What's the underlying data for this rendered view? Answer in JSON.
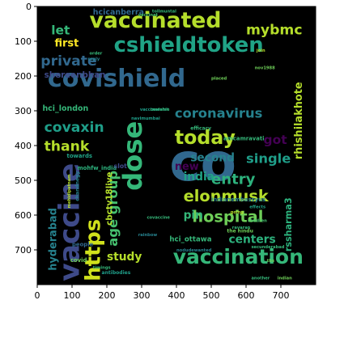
{
  "chart_data": {
    "type": "wordcloud",
    "title": "",
    "xlabel": "",
    "ylabel": "",
    "xlim": [
      0,
      800
    ],
    "ylim": [
      800,
      0
    ],
    "x_ticks": [
      "0",
      "100",
      "200",
      "300",
      "400",
      "500",
      "600",
      "700"
    ],
    "y_ticks": [
      "0",
      "100",
      "200",
      "300",
      "400",
      "500",
      "600",
      "700"
    ],
    "grid": false,
    "background_color": "#000000",
    "words": [
      {
        "text": "covishield",
        "x": 30,
        "y": 230,
        "size": 70,
        "color": "#31688e",
        "vertical": false
      },
      {
        "text": "co",
        "x": 380,
        "y": 500,
        "size": 150,
        "color": "#31688e",
        "vertical": false
      },
      {
        "text": "vaccinated",
        "x": 150,
        "y": 60,
        "size": 62,
        "color": "#b5de2b",
        "vertical": false
      },
      {
        "text": "cshieldtoken",
        "x": 220,
        "y": 130,
        "size": 60,
        "color": "#20a386",
        "vertical": false
      },
      {
        "text": "vaccination",
        "x": 390,
        "y": 740,
        "size": 58,
        "color": "#35b779",
        "vertical": false
      },
      {
        "text": "https",
        "x": 180,
        "y": 790,
        "size": 60,
        "color": "#d0e11c",
        "vertical": true
      },
      {
        "text": "vaccine",
        "x": 120,
        "y": 790,
        "size": 80,
        "color": "#3e4a89",
        "vertical": true
      },
      {
        "text": "today",
        "x": 395,
        "y": 395,
        "size": 55,
        "color": "#b5de2b",
        "vertical": false
      },
      {
        "text": "dose",
        "x": 300,
        "y": 530,
        "size": 75,
        "color": "#35b779",
        "vertical": true
      },
      {
        "text": "hospital",
        "x": 445,
        "y": 620,
        "size": 45,
        "color": "#6ece58",
        "vertical": false
      },
      {
        "text": "elonmusk",
        "x": 420,
        "y": 560,
        "size": 45,
        "color": "#b5de2b",
        "vertical": false
      },
      {
        "text": "covaxin",
        "x": 20,
        "y": 360,
        "size": 40,
        "color": "#1f9e89",
        "vertical": false
      },
      {
        "text": "private",
        "x": 10,
        "y": 170,
        "size": 40,
        "color": "#31688e",
        "vertical": false
      },
      {
        "text": "coronavirus",
        "x": 395,
        "y": 320,
        "size": 38,
        "color": "#26828e",
        "vertical": false
      },
      {
        "text": "thank",
        "x": 20,
        "y": 415,
        "size": 40,
        "color": "#b5de2b",
        "vertical": false
      },
      {
        "text": "mybmc",
        "x": 600,
        "y": 80,
        "size": 40,
        "color": "#b5de2b",
        "vertical": false
      },
      {
        "text": "let",
        "x": 40,
        "y": 80,
        "size": 36,
        "color": "#35b779",
        "vertical": false
      },
      {
        "text": "rhishilakhote",
        "x": 760,
        "y": 440,
        "size": 30,
        "color": "#b5de2b",
        "vertical": true
      },
      {
        "text": "entry",
        "x": 500,
        "y": 510,
        "size": 42,
        "color": "#2db27d",
        "vertical": false
      },
      {
        "text": "age group",
        "x": 230,
        "y": 690,
        "size": 38,
        "color": "#46c06f",
        "vertical": true
      },
      {
        "text": "single",
        "x": 600,
        "y": 450,
        "size": 38,
        "color": "#1f9e89",
        "vertical": false
      },
      {
        "text": "second",
        "x": 440,
        "y": 445,
        "size": 32,
        "color": "#26828e",
        "vertical": false
      },
      {
        "text": "india",
        "x": 420,
        "y": 500,
        "size": 32,
        "color": "#20a386",
        "vertical": false
      },
      {
        "text": "pin",
        "x": 420,
        "y": 610,
        "size": 32,
        "color": "#35b779",
        "vertical": false
      },
      {
        "text": "new",
        "x": 395,
        "y": 470,
        "size": 30,
        "color": "#440154",
        "vertical": false
      },
      {
        "text": "got",
        "x": 650,
        "y": 395,
        "size": 36,
        "color": "#440154",
        "vertical": false
      },
      {
        "text": "first",
        "x": 50,
        "y": 115,
        "size": 30,
        "color": "#fde725",
        "vertical": false
      },
      {
        "text": "centers",
        "x": 550,
        "y": 680,
        "size": 32,
        "color": "#2db27d",
        "vertical": false
      },
      {
        "text": "study",
        "x": 200,
        "y": 730,
        "size": 32,
        "color": "#b5de2b",
        "vertical": false
      },
      {
        "text": "hyderabad",
        "x": 55,
        "y": 760,
        "size": 30,
        "color": "#26828e",
        "vertical": true
      },
      {
        "text": "rssharma3",
        "x": 730,
        "y": 705,
        "size": 26,
        "color": "#2db27d",
        "vertical": true
      },
      {
        "text": "cbctv18live",
        "x": 215,
        "y": 630,
        "size": 24,
        "color": "#b5de2b",
        "vertical": true
      },
      {
        "text": "shereenbhan",
        "x": 20,
        "y": 205,
        "size": 24,
        "color": "#3e4a89",
        "vertical": false
      },
      {
        "text": "hci_london",
        "x": 15,
        "y": 300,
        "size": 22,
        "color": "#35b779",
        "vertical": false
      },
      {
        "text": "hcicanberra",
        "x": 160,
        "y": 23,
        "size": 22,
        "color": "#31688e",
        "vertical": false
      },
      {
        "text": "indianembassyus",
        "x": 500,
        "y": 560,
        "size": 16,
        "color": "#26828e",
        "vertical": false
      },
      {
        "text": "hci_ottawa",
        "x": 380,
        "y": 675,
        "size": 20,
        "color": "#35b779",
        "vertical": false
      },
      {
        "text": "mohfw_india",
        "x": 115,
        "y": 470,
        "size": 16,
        "color": "#2db27d",
        "vertical": false
      },
      {
        "text": "towards",
        "x": 85,
        "y": 435,
        "size": 16,
        "color": "#20a386",
        "vertical": false
      },
      {
        "text": "amcamravati",
        "x": 535,
        "y": 385,
        "size": 16,
        "color": "#35b779",
        "vertical": false
      },
      {
        "text": "covid",
        "x": 95,
        "y": 735,
        "size": 16,
        "color": "#6ece58",
        "vertical": false
      },
      {
        "text": "people",
        "x": 100,
        "y": 690,
        "size": 16,
        "color": "#31688e",
        "vertical": false
      },
      {
        "text": "slot",
        "x": 220,
        "y": 465,
        "size": 18,
        "color": "#3e4a89",
        "vertical": false
      },
      {
        "text": "efficacy",
        "x": 440,
        "y": 355,
        "size": 14,
        "color": "#35b779",
        "vertical": false
      },
      {
        "text": "chandnegy",
        "x": 120,
        "y": 560,
        "size": 14,
        "color": "#26828e",
        "vertical": true
      },
      {
        "text": "mehidipatnam",
        "x": 95,
        "y": 580,
        "size": 12,
        "color": "#b5de2b",
        "vertical": true
      },
      {
        "text": "covaccine",
        "x": 315,
        "y": 610,
        "size": 12,
        "color": "#35b779",
        "vertical": false
      },
      {
        "text": "the hindu",
        "x": 545,
        "y": 650,
        "size": 14,
        "color": "#6ece58",
        "vertical": false
      },
      {
        "text": "antibodies",
        "x": 185,
        "y": 770,
        "size": 14,
        "color": "#1f9e89",
        "vertical": false
      },
      {
        "text": "nodudewanted",
        "x": 400,
        "y": 705,
        "size": 12,
        "color": "#26828e",
        "vertical": false
      },
      {
        "text": "secunderabad",
        "x": 615,
        "y": 695,
        "size": 12,
        "color": "#35b779",
        "vertical": false
      },
      {
        "text": "vaccinerelat",
        "x": 295,
        "y": 300,
        "size": 12,
        "color": "#1f9e89",
        "vertical": false
      },
      {
        "text": "covishie",
        "x": 325,
        "y": 300,
        "size": 12,
        "color": "#35b779",
        "vertical": false
      },
      {
        "text": "vaccinat",
        "x": 290,
        "y": 28,
        "size": 12,
        "color": "#46c06f",
        "vertical": false
      },
      {
        "text": "nov1988",
        "x": 625,
        "y": 180,
        "size": 12,
        "color": "#6ece58",
        "vertical": false
      },
      {
        "text": "join",
        "x": 630,
        "y": 130,
        "size": 12,
        "color": "#b5de2b",
        "vertical": false
      },
      {
        "text": "reply",
        "x": 145,
        "y": 155,
        "size": 12,
        "color": "#26828e",
        "vertical": false
      },
      {
        "text": "order",
        "x": 150,
        "y": 138,
        "size": 12,
        "color": "#35b779",
        "vertical": false
      },
      {
        "text": "going",
        "x": 555,
        "y": 595,
        "size": 12,
        "color": "#b5de2b",
        "vertical": false
      },
      {
        "text": "children",
        "x": 605,
        "y": 620,
        "size": 12,
        "color": "#46c06f",
        "vertical": false
      },
      {
        "text": "indian",
        "x": 690,
        "y": 785,
        "size": 12,
        "color": "#6ece58",
        "vertical": false
      },
      {
        "text": "another",
        "x": 615,
        "y": 785,
        "size": 12,
        "color": "#35b779",
        "vertical": false
      },
      {
        "text": "rainbow",
        "x": 290,
        "y": 660,
        "size": 12,
        "color": "#26828e",
        "vertical": false
      },
      {
        "text": "timings",
        "x": 160,
        "y": 755,
        "size": 12,
        "color": "#35b779",
        "vertical": false
      },
      {
        "text": "navimumbai",
        "x": 270,
        "y": 325,
        "size": 12,
        "color": "#1f9e89",
        "vertical": false
      },
      {
        "text": "placed",
        "x": 500,
        "y": 210,
        "size": 12,
        "color": "#6ece58",
        "vertical": false
      },
      {
        "text": "ravaran",
        "x": 560,
        "y": 640,
        "size": 12,
        "color": "#35b779",
        "vertical": false
      },
      {
        "text": "tollmuntal",
        "x": 330,
        "y": 18,
        "size": 12,
        "color": "#35b779",
        "vertical": false
      },
      {
        "text": "effects",
        "x": 610,
        "y": 580,
        "size": 12,
        "color": "#20a386",
        "vertical": false
      },
      {
        "text": "tbs",
        "x": 660,
        "y": 735,
        "size": 12,
        "color": "#6ece58",
        "vertical": false
      }
    ]
  }
}
